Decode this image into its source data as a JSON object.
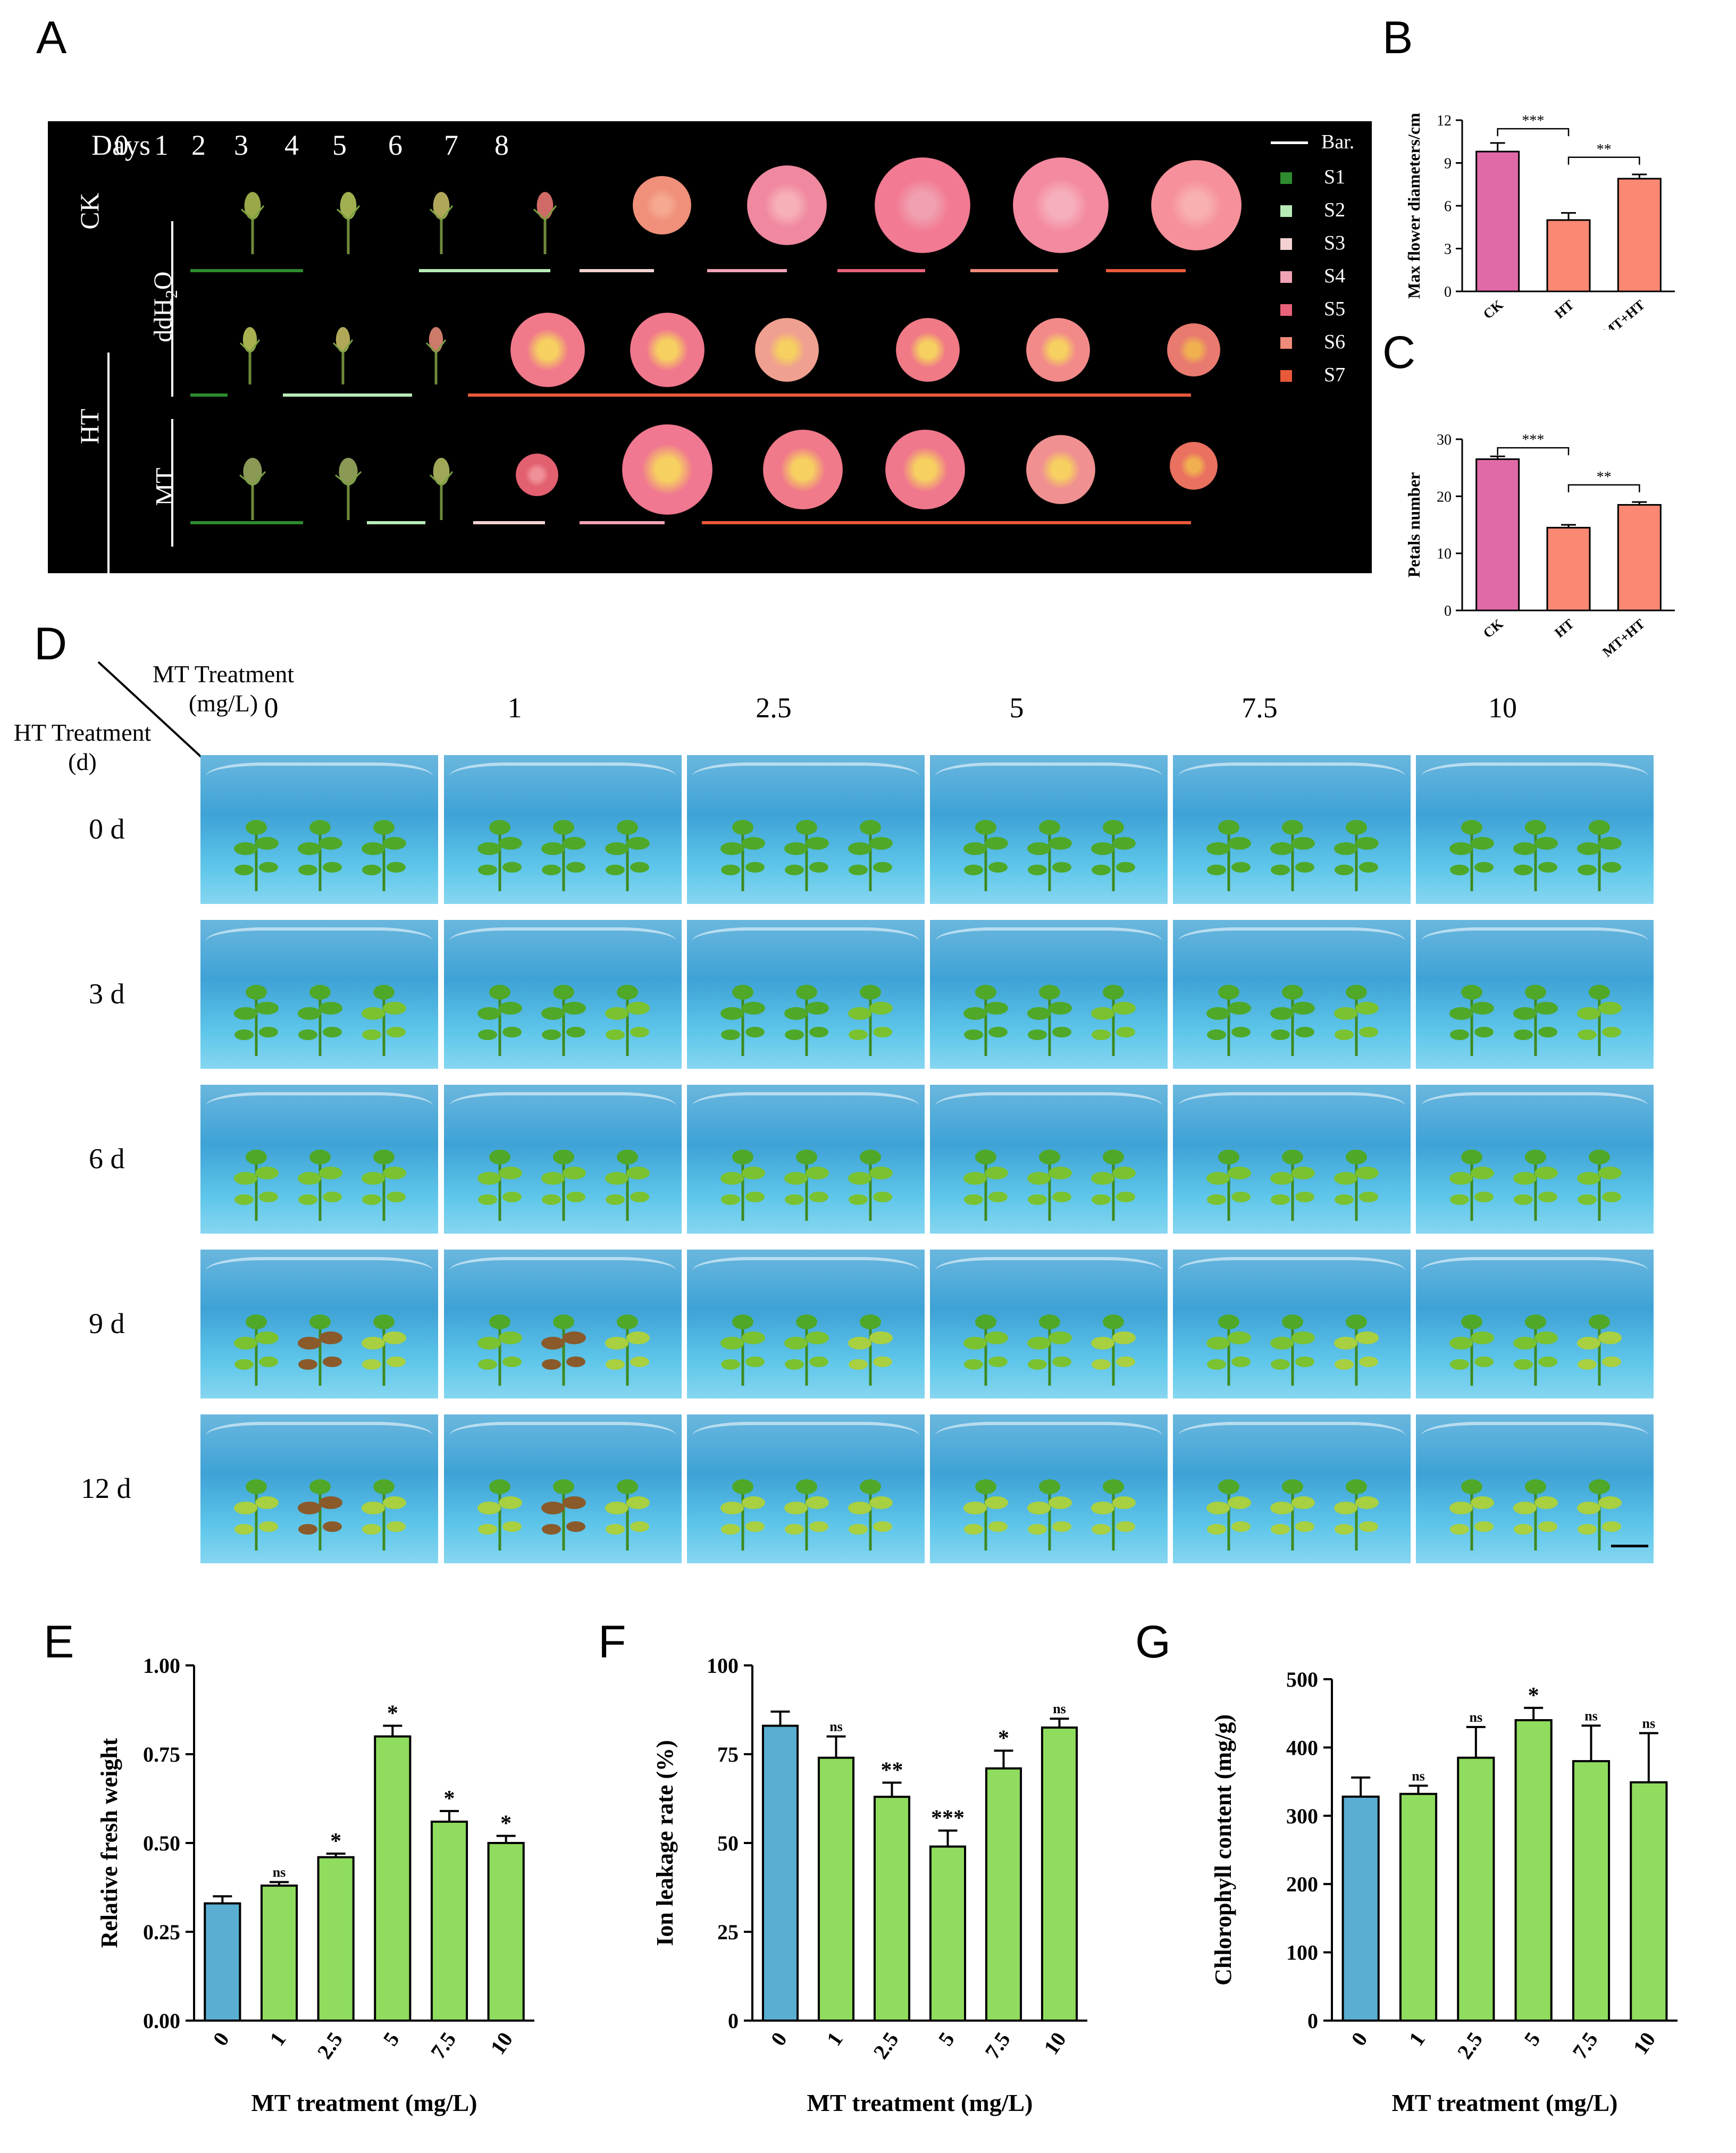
{
  "panel_letters": {
    "A": "A",
    "B": "B",
    "C": "C",
    "D": "D",
    "E": "E",
    "F": "F",
    "G": "G"
  },
  "panelA": {
    "days_label": "Days",
    "days": [
      "0",
      "1",
      "2",
      "3",
      "4",
      "5",
      "6",
      "7",
      "8"
    ],
    "group_ck": "CK",
    "group_ht": "HT",
    "subgroup_ddh2o": "ddH",
    "subgroup_ddh2o_sub": "2",
    "subgroup_ddh2o_end": "O",
    "subgroup_mt": "MT",
    "legend_bar": "Bar.",
    "stages": [
      {
        "label": "S1",
        "color": "#2e8b2e"
      },
      {
        "label": "S2",
        "color": "#b8eab8"
      },
      {
        "label": "S3",
        "color": "#f4d2d2"
      },
      {
        "label": "S4",
        "color": "#f1a2b4"
      },
      {
        "label": "S5",
        "color": "#e8627a"
      },
      {
        "label": "S6",
        "color": "#f08a7a"
      },
      {
        "label": "S7",
        "color": "#e8593a"
      }
    ]
  },
  "panelD": {
    "mt_header_line1": "MT Treatment",
    "mt_header_line2": "(mg/L)",
    "ht_header_line1": "HT Treatment",
    "ht_header_line2": "(d)",
    "columns": [
      "0",
      "1",
      "2.5",
      "5",
      "7.5",
      "10"
    ],
    "rows": [
      "0 d",
      "3 d",
      "6 d",
      "9 d",
      "12 d"
    ]
  },
  "colors": {
    "ck_bar": "#e06aa8",
    "treat_bar": "#fa8872",
    "control_blue": "#5aaed2",
    "mt_green": "#8fdc5e"
  },
  "chart_data": [
    {
      "panel": "B",
      "type": "bar",
      "categories": [
        "CK",
        "HT",
        "MT+HT"
      ],
      "values": [
        9.8,
        5.0,
        7.9
      ],
      "errors": [
        0.6,
        0.5,
        0.3
      ],
      "ylabel": "Max flower diameters/cm",
      "ylim": [
        0,
        12
      ],
      "yticks": [
        "0",
        "3",
        "6",
        "9",
        "12"
      ],
      "significance": [
        {
          "from": "CK",
          "to": "HT",
          "label": "***"
        },
        {
          "from": "HT",
          "to": "MT+HT",
          "label": "**"
        }
      ]
    },
    {
      "panel": "C",
      "type": "bar",
      "categories": [
        "CK",
        "HT",
        "MT+HT"
      ],
      "values": [
        26.5,
        14.5,
        18.5
      ],
      "errors": [
        0.5,
        0.5,
        0.5
      ],
      "ylabel": "Petals number",
      "ylim": [
        0,
        30
      ],
      "yticks": [
        "0",
        "10",
        "20",
        "30"
      ],
      "significance": [
        {
          "from": "CK",
          "to": "HT",
          "label": "***"
        },
        {
          "from": "HT",
          "to": "MT+HT",
          "label": "**"
        }
      ]
    },
    {
      "panel": "E",
      "type": "bar",
      "categories": [
        "0",
        "1",
        "2.5",
        "5",
        "7.5",
        "10"
      ],
      "values": [
        0.33,
        0.38,
        0.46,
        0.8,
        0.56,
        0.5
      ],
      "errors": [
        0.02,
        0.01,
        0.01,
        0.03,
        0.03,
        0.02
      ],
      "sig": [
        "",
        "ns",
        "*",
        "*",
        "*",
        "*"
      ],
      "xlabel": "MT treatment (mg/L)",
      "ylabel": "Relative fresh weight",
      "ylim": [
        0,
        1.0
      ],
      "yticks": [
        "0.00",
        "0.25",
        "0.50",
        "0.75",
        "1.00"
      ]
    },
    {
      "panel": "F",
      "type": "bar",
      "categories": [
        "0",
        "1",
        "2.5",
        "5",
        "7.5",
        "10"
      ],
      "values": [
        83,
        74,
        63,
        49,
        71,
        82.5
      ],
      "errors": [
        4,
        6,
        4,
        4.5,
        5,
        2.5
      ],
      "sig": [
        "",
        "ns",
        "**",
        "***",
        "*",
        "ns"
      ],
      "xlabel": "MT treatment (mg/L)",
      "ylabel": "Ion leakage rate (%)",
      "ylim": [
        0,
        100
      ],
      "yticks": [
        "0",
        "25",
        "50",
        "75",
        "100"
      ]
    },
    {
      "panel": "G",
      "type": "bar",
      "categories": [
        "0",
        "1",
        "2.5",
        "5",
        "7.5",
        "10"
      ],
      "values": [
        328,
        332,
        385,
        440,
        380,
        349
      ],
      "errors": [
        28,
        12,
        45,
        18,
        52,
        72
      ],
      "sig": [
        "",
        "ns",
        "ns",
        "*",
        "ns",
        "ns"
      ],
      "xlabel": "MT treatment (mg/L)",
      "ylabel": "Chlorophyll content (mg/g)",
      "ylim": [
        0,
        500
      ],
      "yticks": [
        "0",
        "100",
        "200",
        "300",
        "400",
        "500"
      ]
    }
  ]
}
